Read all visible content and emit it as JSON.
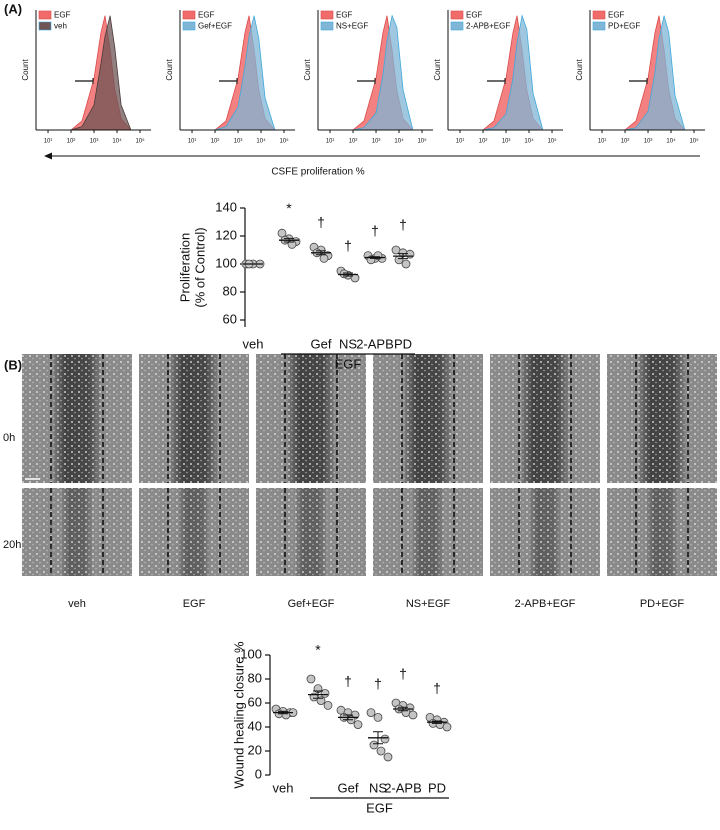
{
  "panel_a": {
    "label": "(A)",
    "axis_note": "CSFE proliferation %"
  },
  "panel_b": {
    "label": "(B)",
    "image_rows": [
      "0h",
      "20h"
    ],
    "image_columns": [
      "veh",
      "EGF",
      "Gef+EGF",
      "NS+EGF",
      "2-APB+EGF",
      "PD+EGF"
    ]
  },
  "chart_data": [
    {
      "type": "area",
      "ylabel": "Count",
      "log_x": true,
      "legend": "upper left",
      "x": [
        100,
        300,
        1000,
        2000,
        3000,
        5000,
        8000,
        15000,
        40000
      ],
      "xlim": [
        3,
        300000
      ],
      "xticks": [
        {
          "value": 10,
          "label": "10¹"
        },
        {
          "value": 100,
          "label": "10²"
        },
        {
          "value": 1000,
          "label": "10³"
        },
        {
          "value": 10000,
          "label": "10⁴"
        },
        {
          "value": 100000,
          "label": "10⁵"
        }
      ],
      "ylim": [
        0,
        105
      ],
      "series": [
        {
          "name": "EGF",
          "color": "#f26b6b",
          "values": [
            0,
            8,
            45,
            85,
            100,
            70,
            35,
            10,
            0
          ]
        },
        {
          "name": "veh",
          "color": "#6e5454",
          "values": [
            0,
            3,
            22,
            58,
            82,
            100,
            72,
            22,
            0
          ]
        }
      ]
    },
    {
      "type": "area",
      "ylabel": "Count",
      "log_x": true,
      "legend": "upper left",
      "x": [
        100,
        300,
        1000,
        2000,
        3000,
        5000,
        8000,
        15000,
        40000
      ],
      "xlim": [
        3,
        300000
      ],
      "xticks": [
        {
          "value": 10,
          "label": "10¹"
        },
        {
          "value": 100,
          "label": "10²"
        },
        {
          "value": 1000,
          "label": "10³"
        },
        {
          "value": 10000,
          "label": "10⁴"
        },
        {
          "value": 100000,
          "label": "10⁵"
        }
      ],
      "ylim": [
        0,
        105
      ],
      "series": [
        {
          "name": "EGF",
          "color": "#f26b6b",
          "values": [
            0,
            8,
            45,
            85,
            100,
            70,
            35,
            10,
            0
          ]
        },
        {
          "name": "Gef+EGF",
          "color": "#7fb6d6",
          "values": [
            0,
            3,
            20,
            55,
            82,
            100,
            80,
            28,
            0
          ]
        }
      ]
    },
    {
      "type": "area",
      "ylabel": "Count",
      "log_x": true,
      "legend": "upper left",
      "x": [
        100,
        300,
        1000,
        2000,
        3000,
        5000,
        8000,
        15000,
        40000
      ],
      "xlim": [
        3,
        300000
      ],
      "xticks": [
        {
          "value": 10,
          "label": "10¹"
        },
        {
          "value": 100,
          "label": "10²"
        },
        {
          "value": 1000,
          "label": "10³"
        },
        {
          "value": 10000,
          "label": "10⁴"
        },
        {
          "value": 100000,
          "label": "10⁵"
        }
      ],
      "ylim": [
        0,
        105
      ],
      "series": [
        {
          "name": "EGF",
          "color": "#f26b6b",
          "values": [
            0,
            8,
            45,
            85,
            100,
            70,
            35,
            10,
            0
          ]
        },
        {
          "name": "NS+EGF",
          "color": "#7fb6d6",
          "values": [
            0,
            2,
            15,
            48,
            78,
            100,
            90,
            35,
            0
          ]
        }
      ]
    },
    {
      "type": "area",
      "ylabel": "Count",
      "log_x": true,
      "legend": "upper left",
      "x": [
        100,
        300,
        1000,
        2000,
        3000,
        5000,
        8000,
        15000,
        40000
      ],
      "xlim": [
        3,
        300000
      ],
      "xticks": [
        {
          "value": 10,
          "label": "10¹"
        },
        {
          "value": 100,
          "label": "10²"
        },
        {
          "value": 1000,
          "label": "10³"
        },
        {
          "value": 10000,
          "label": "10⁴"
        },
        {
          "value": 100000,
          "label": "10⁵"
        }
      ],
      "ylim": [
        0,
        105
      ],
      "series": [
        {
          "name": "EGF",
          "color": "#f26b6b",
          "values": [
            0,
            8,
            45,
            85,
            100,
            70,
            35,
            10,
            0
          ]
        },
        {
          "name": "2-APB+EGF",
          "color": "#7fb6d6",
          "values": [
            0,
            2,
            14,
            45,
            76,
            100,
            88,
            32,
            0
          ]
        }
      ]
    },
    {
      "type": "area",
      "ylabel": "Count",
      "log_x": true,
      "legend": "upper left",
      "x": [
        100,
        300,
        1000,
        2000,
        3000,
        5000,
        8000,
        15000,
        40000
      ],
      "xlim": [
        3,
        300000
      ],
      "xticks": [
        {
          "value": 10,
          "label": "10¹"
        },
        {
          "value": 100,
          "label": "10²"
        },
        {
          "value": 1000,
          "label": "10³"
        },
        {
          "value": 10000,
          "label": "10⁴"
        },
        {
          "value": 100000,
          "label": "10⁵"
        }
      ],
      "ylim": [
        0,
        105
      ],
      "series": [
        {
          "name": "EGF",
          "color": "#f26b6b",
          "values": [
            0,
            8,
            45,
            85,
            100,
            70,
            35,
            10,
            0
          ]
        },
        {
          "name": "PD+EGF",
          "color": "#7fb6d6",
          "values": [
            0,
            2,
            16,
            50,
            80,
            100,
            85,
            30,
            0
          ]
        }
      ]
    },
    {
      "type": "dot",
      "ylabel": [
        "Proliferation",
        "(% of Control)"
      ],
      "categories": [
        "veh",
        null,
        "Gef",
        "NS",
        "2-APB",
        "PD"
      ],
      "group_label": "EGF",
      "points": [
        [
          100,
          100,
          100,
          100
        ],
        [
          122,
          118,
          116,
          117,
          114
        ],
        [
          112,
          110,
          106,
          108,
          104
        ],
        [
          95,
          92,
          90,
          93
        ],
        [
          106,
          104,
          104,
          103,
          106
        ],
        [
          110,
          108,
          107,
          103,
          100
        ]
      ],
      "means": [
        100,
        117,
        108,
        92.5,
        104.6,
        105.6
      ],
      "sems": [
        0,
        1.3,
        1.4,
        1.1,
        0.6,
        1.8
      ],
      "annotations": [
        null,
        "*",
        "†",
        "†",
        "†",
        "†"
      ],
      "ylim": [
        55,
        140
      ],
      "yticks": [
        60,
        80,
        100,
        120,
        140
      ],
      "color": "#c4c4c4"
    },
    {
      "type": "dot",
      "ylabel": [
        "Wound healing closure %"
      ],
      "categories": [
        "veh",
        null,
        "Gef",
        "NS",
        "2-APB",
        "PD"
      ],
      "group_label": "EGF",
      "points": [
        [
          55,
          53,
          52,
          51,
          50,
          52
        ],
        [
          80,
          72,
          68,
          65,
          62,
          58
        ],
        [
          54,
          52,
          50,
          48,
          46,
          42
        ],
        [
          52,
          48,
          30,
          25,
          20,
          15
        ],
        [
          60,
          58,
          56,
          55,
          52,
          50
        ],
        [
          48,
          46,
          44,
          43,
          42,
          40
        ]
      ],
      "means": [
        52,
        67,
        48,
        31,
        55,
        44
      ],
      "sems": [
        1,
        3,
        2,
        5,
        1.5,
        1
      ],
      "annotations": [
        null,
        "*",
        "†",
        "†",
        "†",
        "†"
      ],
      "ylim": [
        0,
        100
      ],
      "yticks": [
        0,
        20,
        40,
        60,
        80,
        100
      ],
      "color": "#c4c4c4"
    }
  ]
}
